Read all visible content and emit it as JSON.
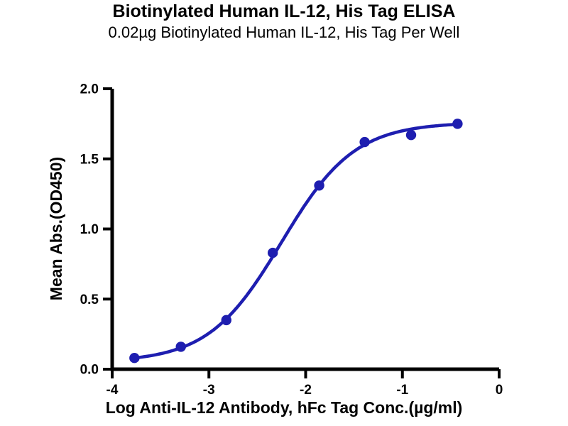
{
  "chart_data": {
    "type": "scatter",
    "title": "Biotinylated Human IL-12, His Tag ELISA",
    "subtitle": "0.02µg Biotinylated Human IL-12, His Tag Per Well",
    "xlabel": "Log Anti-IL-12 Antibody, hFc Tag Conc.(µg/ml)",
    "ylabel": "Mean Abs.(OD450)",
    "xlim": [
      -4,
      0
    ],
    "ylim": [
      0,
      2
    ],
    "x_ticks": [
      -4,
      -3,
      -2,
      -1,
      0
    ],
    "x_tick_labels": [
      "-4",
      "-3",
      "-2",
      "-1",
      "0"
    ],
    "y_ticks": [
      0,
      0.5,
      1,
      1.5,
      2
    ],
    "y_tick_labels": [
      "0.0",
      "0.5",
      "1.0",
      "1.5",
      "2.0"
    ],
    "points": [
      {
        "log_conc": -3.77,
        "od450": 0.08
      },
      {
        "log_conc": -3.29,
        "od450": 0.16
      },
      {
        "log_conc": -2.82,
        "od450": 0.35
      },
      {
        "log_conc": -2.34,
        "od450": 0.83
      },
      {
        "log_conc": -1.86,
        "od450": 1.31
      },
      {
        "log_conc": -1.39,
        "od450": 1.62
      },
      {
        "log_conc": -0.91,
        "od450": 1.67
      },
      {
        "log_conc": -0.43,
        "od450": 1.75
      }
    ],
    "curve_fit": {
      "model": "4PL",
      "bottom": 0.05,
      "top": 1.76,
      "logec50": -2.25,
      "hillslope": 1.15,
      "x_start": -3.77,
      "x_end": -0.43
    },
    "colors": {
      "curve": "#1e1eb0",
      "marker": "#1e1eb0",
      "axis": "#000000"
    },
    "grid": false,
    "legend": "none"
  }
}
